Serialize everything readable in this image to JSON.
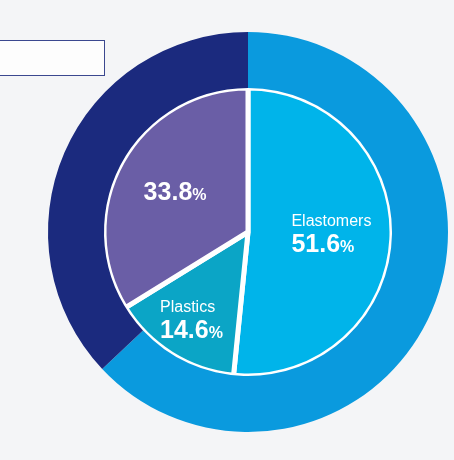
{
  "chart_data": {
    "type": "pie",
    "categories": [
      "Elastomers",
      "Plastics",
      null
    ],
    "values": [
      51.6,
      14.6,
      33.8
    ],
    "value_labels": [
      "51.6%",
      "14.6%",
      "33.8%"
    ],
    "colors": [
      "#00b4ea",
      "#0ba5c6",
      "#6a5ea6"
    ],
    "data_labels": true,
    "outer_ring": {
      "values": [
        63,
        37
      ],
      "colors": [
        "#0a9ade",
        "#1b2a7e"
      ]
    }
  }
}
